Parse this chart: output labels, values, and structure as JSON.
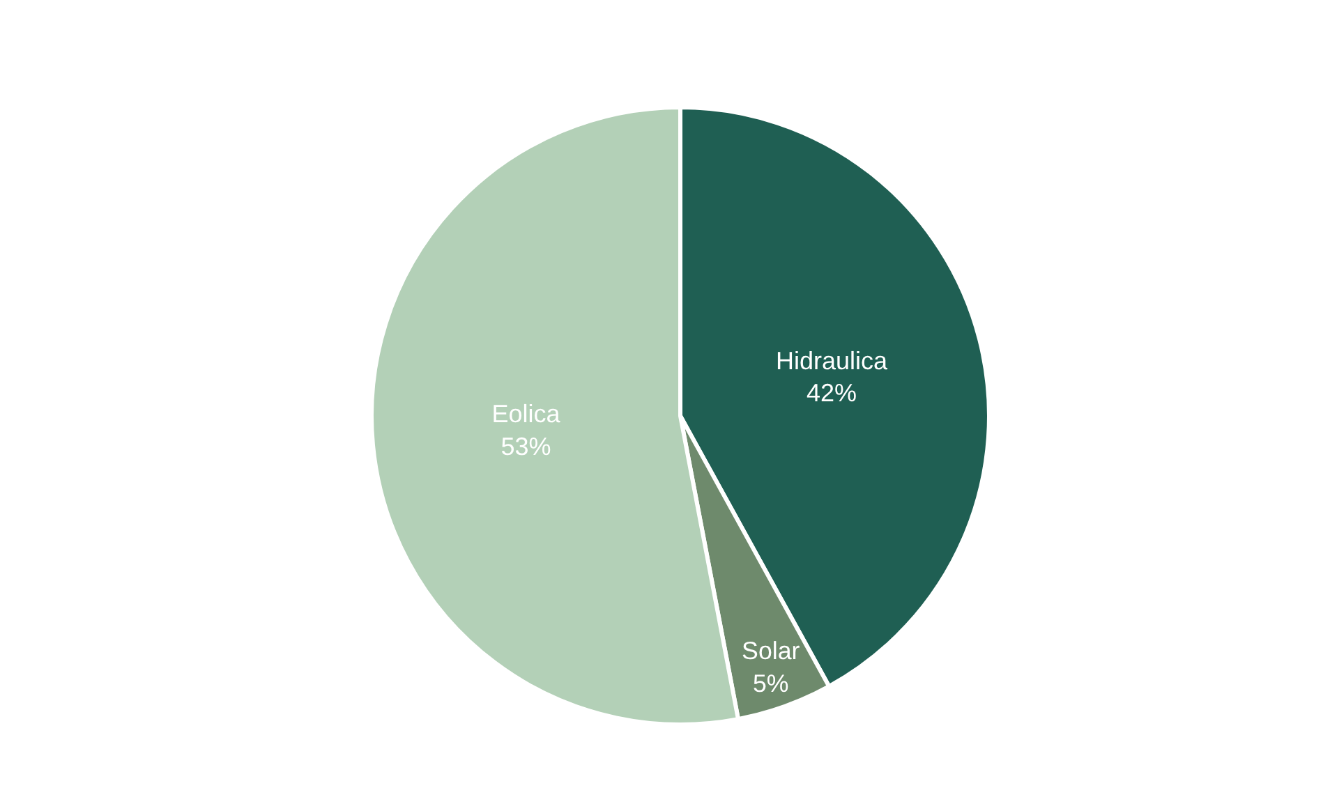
{
  "chart_data": {
    "type": "pie",
    "categories": [
      "Hidraulica",
      "Solar",
      "Eolica"
    ],
    "values": [
      42,
      5,
      53
    ],
    "value_labels": [
      "42%",
      "5%",
      "53%"
    ],
    "colors": [
      "#1f5f53",
      "#6e8a6c",
      "#b3d0b7"
    ],
    "legend": false
  }
}
